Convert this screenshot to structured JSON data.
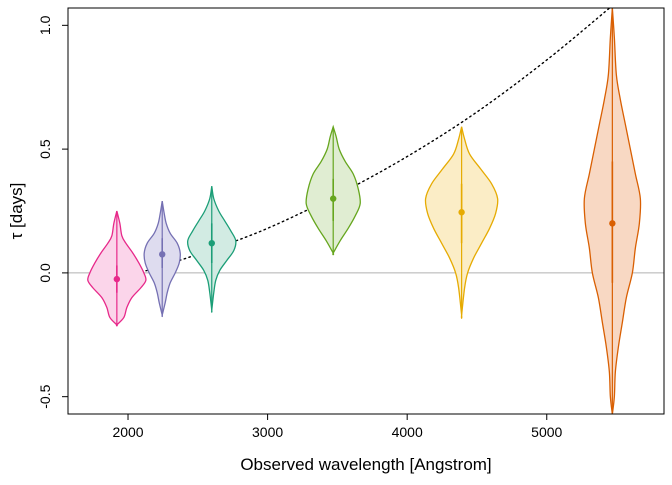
{
  "chart_data": {
    "type": "violin",
    "title": "",
    "xlabel": "Observed wavelength [Angstrom]",
    "ylabel": "τ [days]",
    "xlim": [
      1570,
      5840
    ],
    "ylim": [
      -0.57,
      1.07
    ],
    "xticks": [
      2000,
      3000,
      4000,
      5000
    ],
    "xtick_labels": [
      "2000",
      "3000",
      "4000",
      "5000"
    ],
    "yticks": [
      -0.5,
      0.0,
      0.5,
      1.0
    ],
    "ytick_labels": [
      "-0.5",
      "0.0",
      "0.5",
      "1.0"
    ],
    "grid": false,
    "reference_line": {
      "y": 0.0,
      "color": "#b0b0b0"
    },
    "trend_curve": {
      "style": "dotted",
      "color": "#000000",
      "x": [
        1920,
        2200,
        2600,
        3000,
        3500,
        4000,
        4500,
        5000,
        5450
      ],
      "y": [
        -0.02,
        0.02,
        0.095,
        0.18,
        0.315,
        0.47,
        0.65,
        0.86,
        1.07
      ]
    },
    "series": [
      {
        "x": 1920,
        "median": -0.025,
        "ci_low": -0.08,
        "ci_high": 0.03,
        "stroke": "#e7298a",
        "fill": "#fbd5ea",
        "density": [
          [
            0.25,
            0.0
          ],
          [
            0.2,
            3.0
          ],
          [
            0.15,
            5.0
          ],
          [
            0.12,
            9.0
          ],
          [
            0.08,
            16.0
          ],
          [
            0.04,
            22.0
          ],
          [
            0.0,
            27.0
          ],
          [
            -0.03,
            29.0
          ],
          [
            -0.06,
            24.0
          ],
          [
            -0.1,
            15.0
          ],
          [
            -0.14,
            10.0
          ],
          [
            -0.18,
            7.0
          ],
          [
            -0.21,
            0.0
          ]
        ]
      },
      {
        "x": 2245,
        "median": 0.075,
        "ci_low": 0.02,
        "ci_high": 0.14,
        "stroke": "#7570b3",
        "fill": "#dedcef",
        "density": [
          [
            0.29,
            0.0
          ],
          [
            0.24,
            2.0
          ],
          [
            0.2,
            4.0
          ],
          [
            0.16,
            8.0
          ],
          [
            0.12,
            15.0
          ],
          [
            0.08,
            18.0
          ],
          [
            0.04,
            17.0
          ],
          [
            0.0,
            13.0
          ],
          [
            -0.04,
            8.0
          ],
          [
            -0.08,
            5.0
          ],
          [
            -0.12,
            3.0
          ],
          [
            -0.17,
            0.0
          ]
        ]
      },
      {
        "x": 2600,
        "median": 0.12,
        "ci_low": 0.04,
        "ci_high": 0.2,
        "stroke": "#1b9e77",
        "fill": "#d2ebe3",
        "density": [
          [
            0.35,
            0.0
          ],
          [
            0.3,
            2.0
          ],
          [
            0.25,
            7.0
          ],
          [
            0.21,
            13.0
          ],
          [
            0.17,
            19.0
          ],
          [
            0.13,
            24.0
          ],
          [
            0.09,
            22.0
          ],
          [
            0.05,
            15.0
          ],
          [
            0.01,
            8.0
          ],
          [
            -0.03,
            4.0
          ],
          [
            -0.08,
            2.0
          ],
          [
            -0.15,
            0.0
          ]
        ]
      },
      {
        "x": 3470,
        "median": 0.3,
        "ci_low": 0.21,
        "ci_high": 0.38,
        "stroke": "#66a61e",
        "fill": "#e0edd2",
        "density": [
          [
            0.59,
            0.0
          ],
          [
            0.55,
            3.0
          ],
          [
            0.5,
            6.0
          ],
          [
            0.45,
            12.0
          ],
          [
            0.4,
            20.0
          ],
          [
            0.34,
            25.0
          ],
          [
            0.28,
            27.0
          ],
          [
            0.23,
            22.0
          ],
          [
            0.18,
            15.0
          ],
          [
            0.13,
            7.0
          ],
          [
            0.08,
            0.0
          ]
        ]
      },
      {
        "x": 4390,
        "median": 0.245,
        "ci_low": 0.12,
        "ci_high": 0.36,
        "stroke": "#e6ab02",
        "fill": "#fbedc6",
        "density": [
          [
            0.59,
            0.0
          ],
          [
            0.54,
            3.0
          ],
          [
            0.48,
            8.0
          ],
          [
            0.42,
            19.0
          ],
          [
            0.36,
            30.0
          ],
          [
            0.3,
            36.0
          ],
          [
            0.24,
            34.0
          ],
          [
            0.18,
            28.0
          ],
          [
            0.12,
            20.0
          ],
          [
            0.06,
            12.0
          ],
          [
            0.0,
            6.0
          ],
          [
            -0.06,
            3.0
          ],
          [
            -0.17,
            0.0
          ]
        ]
      },
      {
        "x": 5470,
        "median": 0.2,
        "ci_low": -0.04,
        "ci_high": 0.45,
        "stroke": "#d95f02",
        "fill": "#f8d8c3",
        "density": [
          [
            1.07,
            0.0
          ],
          [
            0.95,
            2.0
          ],
          [
            0.8,
            4.0
          ],
          [
            0.7,
            8.0
          ],
          [
            0.6,
            13.0
          ],
          [
            0.5,
            18.0
          ],
          [
            0.4,
            23.0
          ],
          [
            0.3,
            28.0
          ],
          [
            0.2,
            27.0
          ],
          [
            0.1,
            23.0
          ],
          [
            0.0,
            20.0
          ],
          [
            -0.1,
            14.0
          ],
          [
            -0.2,
            10.0
          ],
          [
            -0.3,
            6.0
          ],
          [
            -0.4,
            3.0
          ],
          [
            -0.5,
            2.0
          ],
          [
            -0.57,
            0.0
          ]
        ]
      }
    ]
  }
}
